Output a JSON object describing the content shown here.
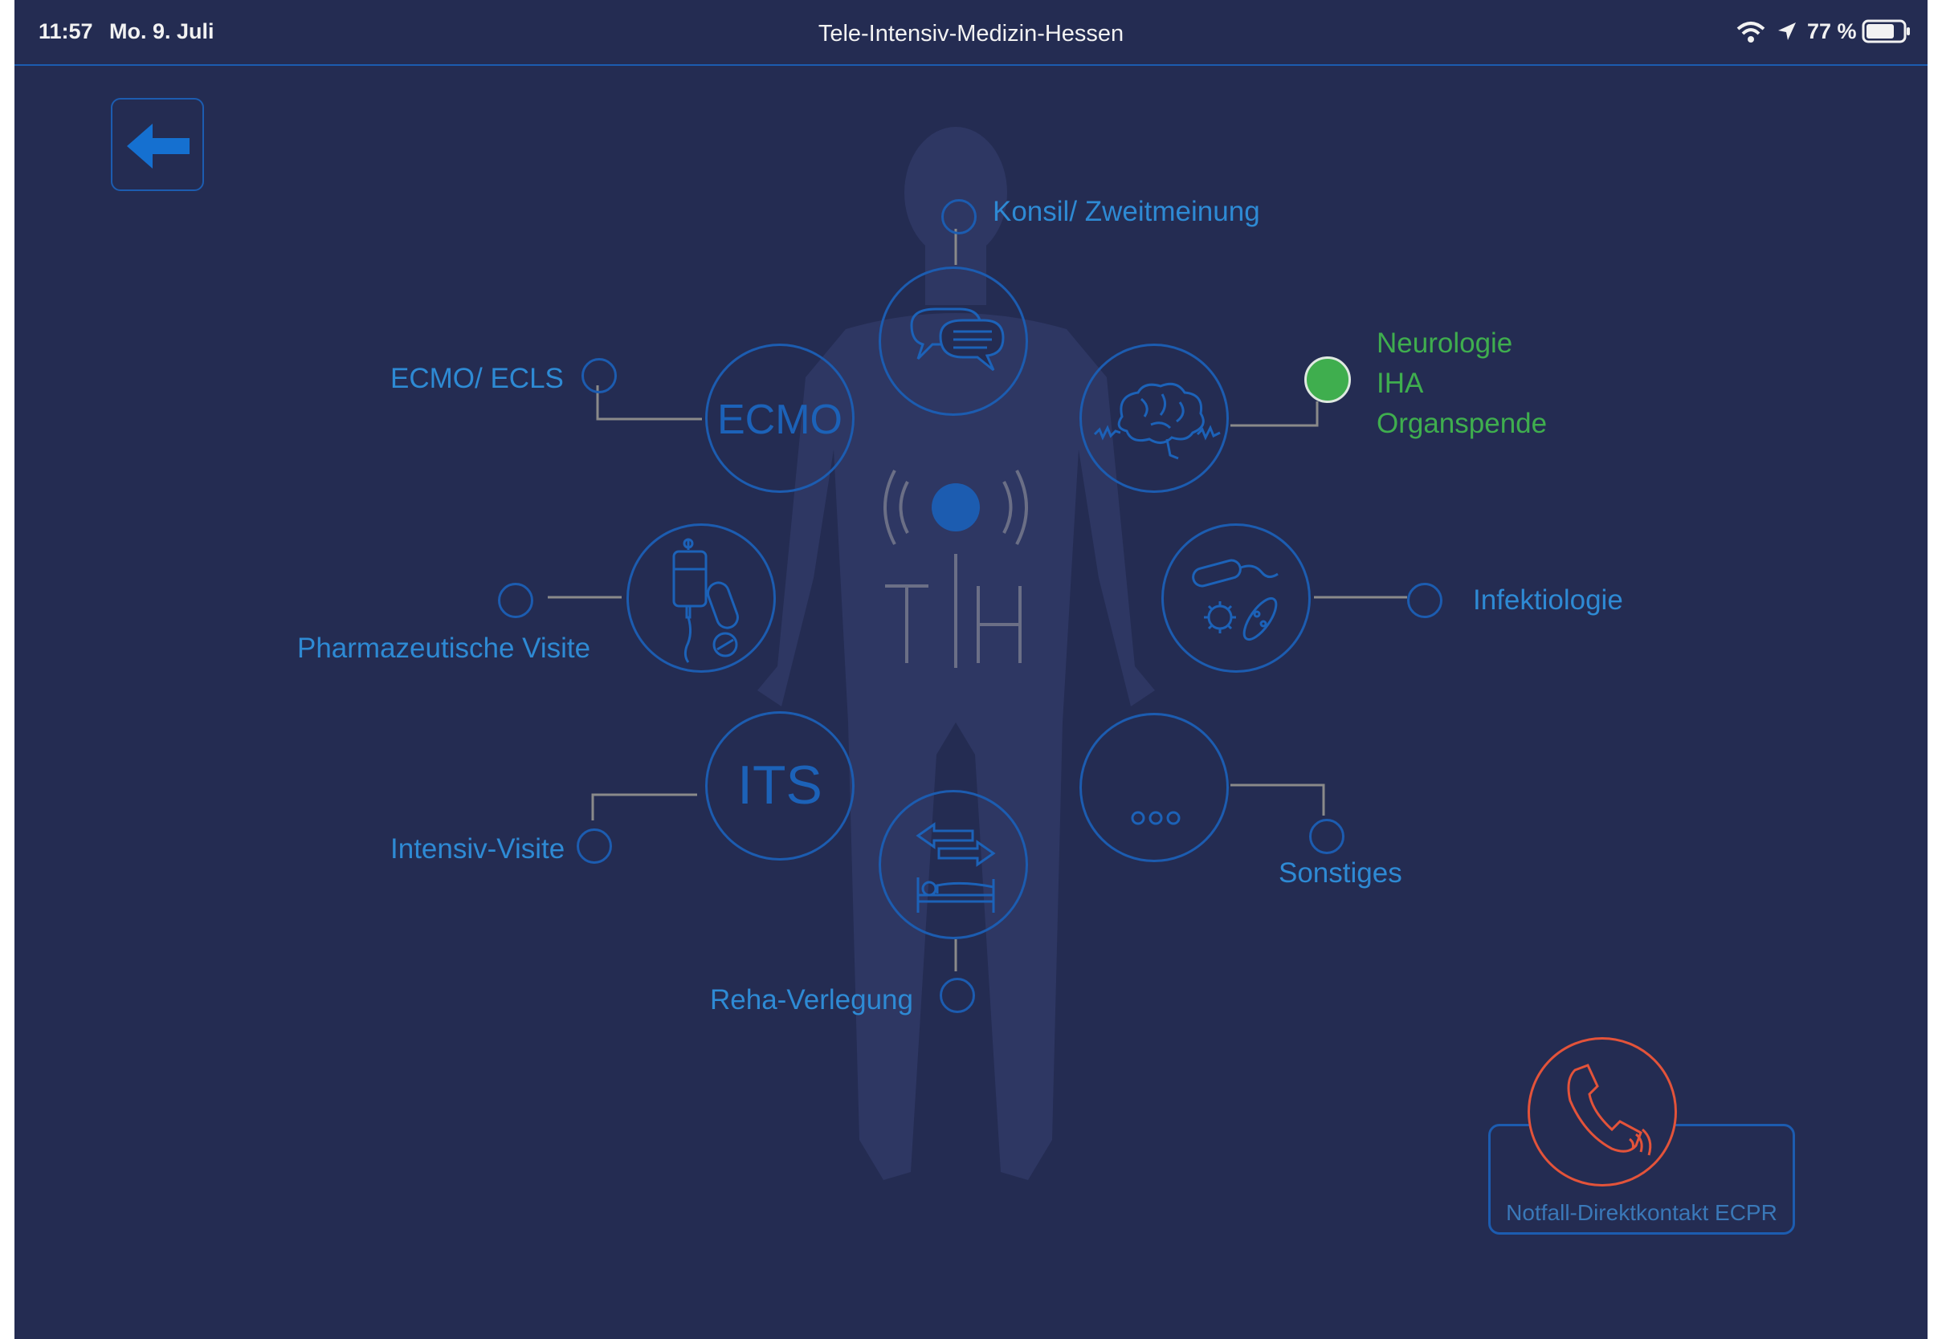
{
  "status_bar": {
    "time": "11:57",
    "date": "Mo. 9. Juli",
    "title": "Tele-Intensiv-Medizin-Hessen",
    "battery": "77 %",
    "icons": [
      "wifi-icon",
      "location-arrow-icon",
      "battery-icon"
    ]
  },
  "back_button": {
    "icon": "arrow-left-icon"
  },
  "center_logo": {
    "text": "TIH"
  },
  "services": {
    "konsil": {
      "label": "Konsil/ Zweitmeinung",
      "icon": "chat-bubbles-icon"
    },
    "ecmo": {
      "label": "ECMO/ ECLS",
      "circle_text": "ECMO"
    },
    "neuro": {
      "labels": [
        "Neurologie",
        "IHA",
        "Organspende"
      ],
      "icon": "brain-icon",
      "active": true
    },
    "pharma": {
      "label": "Pharmazeutische Visite",
      "icon": "iv-drip-pills-icon"
    },
    "infekt": {
      "label": "Infektiologie",
      "icon": "microbes-icon"
    },
    "its": {
      "label": "Intensiv-Visite",
      "circle_text": "ITS"
    },
    "sonstiges": {
      "label": "Sonstiges",
      "icon": "more-dots-icon"
    },
    "reha": {
      "label": "Reha-Verlegung",
      "icon": "bed-transfer-icon"
    }
  },
  "emergency": {
    "label": "Notfall-Direktkontakt ECPR",
    "icon": "phone-icon"
  },
  "colors": {
    "background": "#242c52",
    "accent_blue": "#1c5cb0",
    "label_blue": "#2e8ad4",
    "active_green": "#3fae4e",
    "emergency_red": "#e3533a",
    "connector_grey": "#8a8a8a"
  }
}
